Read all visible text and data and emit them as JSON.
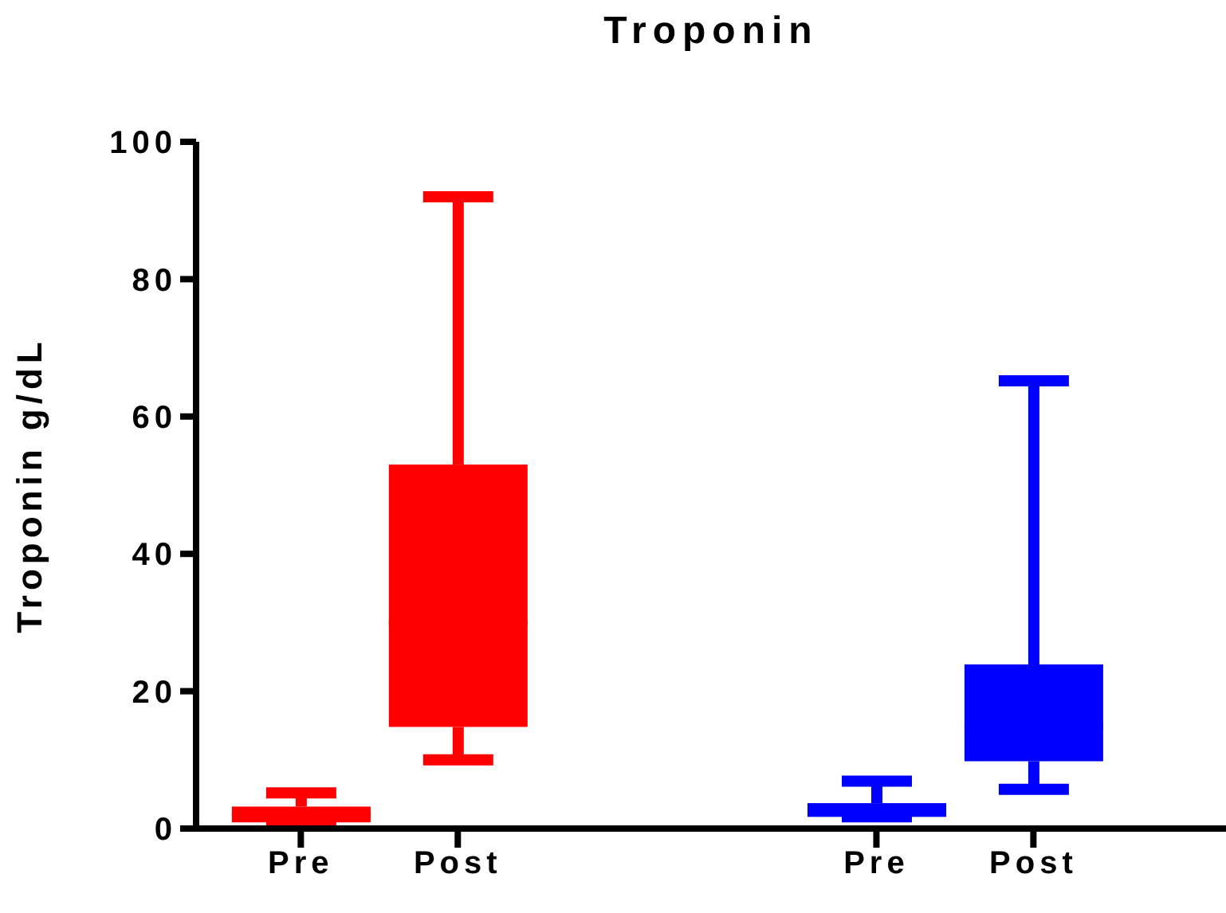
{
  "chart_data": {
    "type": "box",
    "title": "Troponin",
    "ylabel": "Troponin g/dL",
    "categories": [
      "Pre",
      "Post",
      "Pre",
      "Post"
    ],
    "series": [
      {
        "color": "#ff0000",
        "boxes": [
          {
            "low": 0.9,
            "q1": 0.9,
            "median": 2,
            "q3": 3.2,
            "high": 5.2
          },
          {
            "low": 10,
            "q1": 14.8,
            "median": 30,
            "q3": 53,
            "high": 92
          },
          null,
          null
        ]
      },
      {
        "color": "#0000ff",
        "boxes": [
          null,
          null,
          {
            "low": 1.7,
            "q1": 1.7,
            "median": 2.7,
            "q3": 3.7,
            "high": 6.9
          },
          {
            "low": 5.7,
            "q1": 9.8,
            "median": 15,
            "q3": 23.9,
            "high": 65.2
          }
        ]
      }
    ],
    "ylim": [
      0,
      100
    ],
    "yticks": [
      0,
      20,
      40,
      60,
      80,
      100
    ]
  }
}
